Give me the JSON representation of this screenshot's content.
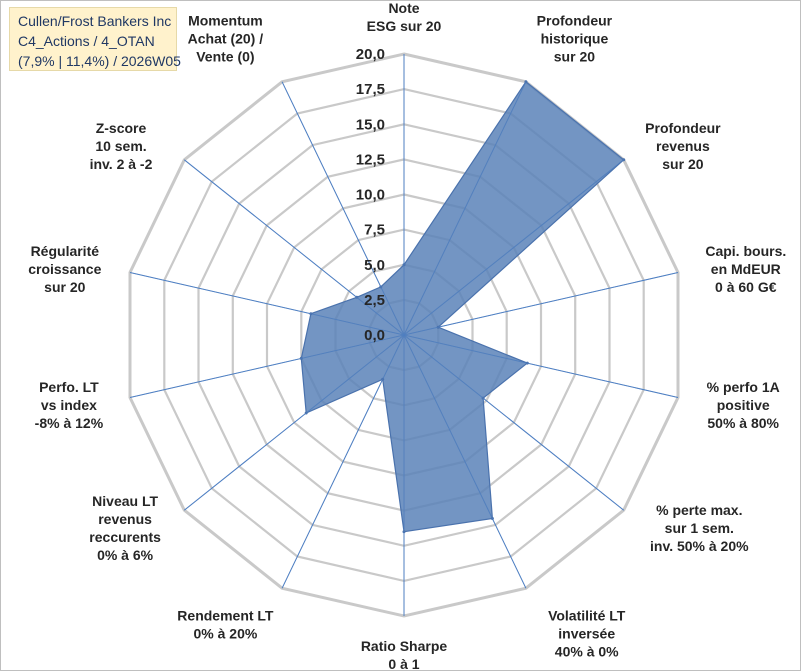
{
  "title_lines": [
    "Cullen/Frost Bankers Inc",
    "C4_Actions / 4_OTAN",
    "(7,9% | 11,4%) / 2026W05"
  ],
  "chart_data": {
    "type": "radar",
    "rmax": 20,
    "rings": [
      2.5,
      5,
      7.5,
      10,
      12.5,
      15,
      17.5,
      20
    ],
    "tick_labels": [
      "0,0",
      "2,5",
      "5,0",
      "7,5",
      "10,0",
      "12,5",
      "15,0",
      "17,5",
      "20,0"
    ],
    "tick_values": [
      0,
      2.5,
      5,
      7.5,
      10,
      12.5,
      15,
      17.5,
      20
    ],
    "axes": [
      {
        "label": [
          "Note",
          "ESG sur 20"
        ],
        "value": 5.0
      },
      {
        "label": [
          "Profondeur",
          "historique",
          "sur 20"
        ],
        "value": 20.0
      },
      {
        "label": [
          "Profondeur",
          "revenus",
          "sur 20"
        ],
        "value": 20.0
      },
      {
        "label": [
          "Capi. bours.",
          "en MdEUR",
          "0 à 60 G€"
        ],
        "value": 2.5
      },
      {
        "label": [
          "% perfo 1A",
          "positive",
          "50% à 80%"
        ],
        "value": 9.0
      },
      {
        "label": [
          "% perte max.",
          "sur 1 sem.",
          "inv. 50% à 20%"
        ],
        "value": 7.2
      },
      {
        "label": [
          "Volatilité LT",
          "inversée",
          "40% à 0%"
        ],
        "value": 14.5
      },
      {
        "label": [
          "Ratio Sharpe",
          "0 à 1"
        ],
        "value": 14.0
      },
      {
        "label": [
          "Rendement LT",
          "0% à 20%"
        ],
        "value": 3.5
      },
      {
        "label": [
          "Niveau LT",
          "revenus",
          "reccurents",
          "0% à 6%"
        ],
        "value": 8.9
      },
      {
        "label": [
          "Perfo. LT",
          "vs index",
          "-8% à 12%"
        ],
        "value": 7.5
      },
      {
        "label": [
          "Régularité",
          "croissance",
          "sur 20"
        ],
        "value": 6.8
      },
      {
        "label": [
          "Z-score",
          "10 sem.",
          "inv. 2 à -2"
        ],
        "value": 4.3
      },
      {
        "label": [
          "Momentum",
          "Achat (20) /",
          "Vente (0)"
        ],
        "value": 3.8
      }
    ],
    "colors": {
      "fill": "#5b82b8",
      "stroke": "#4a72ad",
      "grid": "#c9c9c9",
      "spoke": "#4f7fc2",
      "text": "#262626"
    }
  }
}
